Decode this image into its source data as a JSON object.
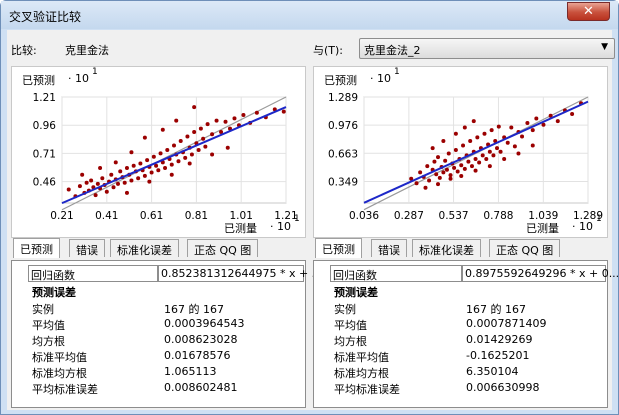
{
  "window": {
    "title": "交叉验证比较",
    "close_label": "✕"
  },
  "header": {
    "compare_label": "比较:",
    "compare_value": "克里金法",
    "with_label": "与(T):",
    "with_value": "克里金法_2"
  },
  "colors": {
    "point": "#9b0000",
    "fit_line": "#1d28c8",
    "ref_line": "#9a9a9a"
  },
  "left": {
    "ylabel": "已预测",
    "xlabel": "已测量",
    "scale_y": "· 10",
    "scale_x": "· 10",
    "exp": "1",
    "tabs": [
      "已预测",
      "错误",
      "标准化误差",
      "正态 QQ 图"
    ],
    "regression_label": "回归函数",
    "regression_value": "0.852381312644975 * x + ...",
    "section_label": "预测误差",
    "stats": [
      {
        "label": "实例",
        "value": "167 的 167"
      },
      {
        "label": "平均值",
        "value": "0.0003964543"
      },
      {
        "label": "均方根",
        "value": "0.008623028"
      },
      {
        "label": "标准平均值",
        "value": "0.01678576"
      },
      {
        "label": "标准均方根",
        "value": "1.065113"
      },
      {
        "label": "平均标准误差",
        "value": "0.008602481"
      }
    ]
  },
  "right": {
    "ylabel": "已预测",
    "xlabel": "已测量",
    "scale_y": "· 10",
    "scale_x": "· 10",
    "exp": "1",
    "tabs": [
      "已预测",
      "错误",
      "标准化误差",
      "正态 QQ 图"
    ],
    "regression_label": "回归函数",
    "regression_value": "0.8975592649296 * x + 0...",
    "section_label": "预测误差",
    "stats": [
      {
        "label": "实例",
        "value": "167 的 167"
      },
      {
        "label": "平均值",
        "value": "0.0007871409"
      },
      {
        "label": "均方根",
        "value": "0.01429269"
      },
      {
        "label": "标准平均值",
        "value": "-0.1625201"
      },
      {
        "label": "标准均方根",
        "value": "6.350104"
      },
      {
        "label": "平均标准误差",
        "value": "0.006630998"
      }
    ]
  },
  "chart_data": [
    {
      "type": "scatter",
      "xlabel": "已测量 · 10^1",
      "ylabel": "已预测 · 10^1",
      "x_ticks": [
        "0.21",
        "0.41",
        "0.61",
        "0.81",
        "1.01",
        "1.21"
      ],
      "y_ticks": [
        "0.46",
        "0.71",
        "0.96",
        "1.21"
      ],
      "xlim": [
        0.21,
        1.21
      ],
      "ylim": [
        0.27,
        1.21
      ],
      "fit": {
        "slope": 0.852,
        "intercept": 0.09
      },
      "grid": true,
      "points": [
        [
          0.24,
          0.39
        ],
        [
          0.27,
          0.33
        ],
        [
          0.29,
          0.42
        ],
        [
          0.31,
          0.36
        ],
        [
          0.32,
          0.45
        ],
        [
          0.33,
          0.38
        ],
        [
          0.34,
          0.47
        ],
        [
          0.35,
          0.41
        ],
        [
          0.36,
          0.34
        ],
        [
          0.37,
          0.44
        ],
        [
          0.38,
          0.4
        ],
        [
          0.39,
          0.49
        ],
        [
          0.4,
          0.43
        ],
        [
          0.41,
          0.37
        ],
        [
          0.42,
          0.46
        ],
        [
          0.43,
          0.52
        ],
        [
          0.44,
          0.41
        ],
        [
          0.45,
          0.48
        ],
        [
          0.46,
          0.44
        ],
        [
          0.47,
          0.55
        ],
        [
          0.48,
          0.5
        ],
        [
          0.49,
          0.45
        ],
        [
          0.5,
          0.58
        ],
        [
          0.51,
          0.52
        ],
        [
          0.52,
          0.47
        ],
        [
          0.53,
          0.6
        ],
        [
          0.54,
          0.55
        ],
        [
          0.55,
          0.49
        ],
        [
          0.56,
          0.62
        ],
        [
          0.57,
          0.56
        ],
        [
          0.58,
          0.51
        ],
        [
          0.59,
          0.65
        ],
        [
          0.6,
          0.59
        ],
        [
          0.61,
          0.54
        ],
        [
          0.62,
          0.68
        ],
        [
          0.63,
          0.6
        ],
        [
          0.64,
          0.56
        ],
        [
          0.65,
          0.71
        ],
        [
          0.66,
          0.63
        ],
        [
          0.67,
          0.58
        ],
        [
          0.68,
          0.74
        ],
        [
          0.69,
          0.66
        ],
        [
          0.7,
          0.61
        ],
        [
          0.71,
          0.78
        ],
        [
          0.72,
          0.7
        ],
        [
          0.73,
          0.64
        ],
        [
          0.74,
          0.82
        ],
        [
          0.75,
          0.72
        ],
        [
          0.76,
          0.67
        ],
        [
          0.77,
          0.86
        ],
        [
          0.78,
          0.76
        ],
        [
          0.79,
          0.7
        ],
        [
          0.8,
          0.9
        ],
        [
          0.81,
          0.8
        ],
        [
          0.82,
          0.74
        ],
        [
          0.83,
          0.93
        ],
        [
          0.84,
          0.84
        ],
        [
          0.85,
          0.77
        ],
        [
          0.86,
          0.97
        ],
        [
          0.88,
          0.88
        ],
        [
          0.9,
          1.0
        ],
        [
          0.92,
          0.9
        ],
        [
          0.94,
          0.99
        ],
        [
          0.96,
          0.93
        ],
        [
          0.98,
          1.02
        ],
        [
          1.0,
          0.96
        ],
        [
          1.02,
          1.05
        ],
        [
          1.05,
          0.98
        ],
        [
          1.08,
          1.07
        ],
        [
          1.12,
          1.03
        ],
        [
          1.16,
          1.1
        ],
        [
          1.2,
          1.08
        ],
        [
          0.3,
          0.52
        ],
        [
          0.38,
          0.58
        ],
        [
          0.45,
          0.63
        ],
        [
          0.52,
          0.72
        ],
        [
          0.58,
          0.85
        ],
        [
          0.66,
          0.92
        ],
        [
          0.72,
          1.0
        ],
        [
          0.8,
          1.12
        ],
        [
          0.5,
          0.36
        ],
        [
          0.6,
          0.46
        ],
        [
          0.7,
          0.52
        ],
        [
          0.78,
          0.62
        ],
        [
          0.88,
          0.7
        ],
        [
          0.95,
          0.76
        ]
      ]
    },
    {
      "type": "scatter",
      "xlabel": "已测量 · 10^1",
      "ylabel": "已预测 · 10^1",
      "x_ticks": [
        "0.036",
        "0.287",
        "0.537",
        "0.788",
        "1.039",
        "1.289"
      ],
      "y_ticks": [
        "0.349",
        "0.663",
        "0.976",
        "1.289"
      ],
      "xlim": [
        0.036,
        1.289
      ],
      "ylim": [
        0.11,
        1.289
      ],
      "fit": {
        "slope": 0.898,
        "intercept": 0.08
      },
      "grid": true,
      "points": [
        [
          0.3,
          0.38
        ],
        [
          0.33,
          0.33
        ],
        [
          0.35,
          0.45
        ],
        [
          0.37,
          0.4
        ],
        [
          0.39,
          0.52
        ],
        [
          0.4,
          0.36
        ],
        [
          0.42,
          0.48
        ],
        [
          0.43,
          0.57
        ],
        [
          0.44,
          0.43
        ],
        [
          0.45,
          0.62
        ],
        [
          0.46,
          0.39
        ],
        [
          0.47,
          0.51
        ],
        [
          0.48,
          0.45
        ],
        [
          0.49,
          0.58
        ],
        [
          0.5,
          0.48
        ],
        [
          0.51,
          0.66
        ],
        [
          0.52,
          0.42
        ],
        [
          0.53,
          0.55
        ],
        [
          0.54,
          0.5
        ],
        [
          0.55,
          0.7
        ],
        [
          0.56,
          0.46
        ],
        [
          0.57,
          0.6
        ],
        [
          0.58,
          0.53
        ],
        [
          0.59,
          0.75
        ],
        [
          0.6,
          0.49
        ],
        [
          0.61,
          0.64
        ],
        [
          0.62,
          0.57
        ],
        [
          0.63,
          0.8
        ],
        [
          0.64,
          0.52
        ],
        [
          0.65,
          0.68
        ],
        [
          0.66,
          0.6
        ],
        [
          0.67,
          0.84
        ],
        [
          0.68,
          0.56
        ],
        [
          0.69,
          0.72
        ],
        [
          0.7,
          0.64
        ],
        [
          0.71,
          0.88
        ],
        [
          0.72,
          0.6
        ],
        [
          0.73,
          0.76
        ],
        [
          0.74,
          0.68
        ],
        [
          0.75,
          0.92
        ],
        [
          0.76,
          0.64
        ],
        [
          0.77,
          0.8
        ],
        [
          0.78,
          0.72
        ],
        [
          0.79,
          0.96
        ],
        [
          0.8,
          0.68
        ],
        [
          0.82,
          0.84
        ],
        [
          0.84,
          0.78
        ],
        [
          0.86,
          0.95
        ],
        [
          0.88,
          0.74
        ],
        [
          0.9,
          0.9
        ],
        [
          0.92,
          0.85
        ],
        [
          0.95,
          1.0
        ],
        [
          0.98,
          0.92
        ],
        [
          1.0,
          1.05
        ],
        [
          1.04,
          0.98
        ],
        [
          1.08,
          1.08
        ],
        [
          1.12,
          1.02
        ],
        [
          1.16,
          1.14
        ],
        [
          1.2,
          1.1
        ],
        [
          1.25,
          1.22
        ],
        [
          0.42,
          0.72
        ],
        [
          0.48,
          0.8
        ],
        [
          0.55,
          0.88
        ],
        [
          0.6,
          0.95
        ],
        [
          0.65,
          1.02
        ],
        [
          0.38,
          0.28
        ],
        [
          0.45,
          0.32
        ],
        [
          0.52,
          0.38
        ],
        [
          0.58,
          0.41
        ],
        [
          0.66,
          0.47
        ],
        [
          0.74,
          0.52
        ],
        [
          0.82,
          0.6
        ],
        [
          0.9,
          0.66
        ],
        [
          0.98,
          0.75
        ]
      ]
    }
  ]
}
